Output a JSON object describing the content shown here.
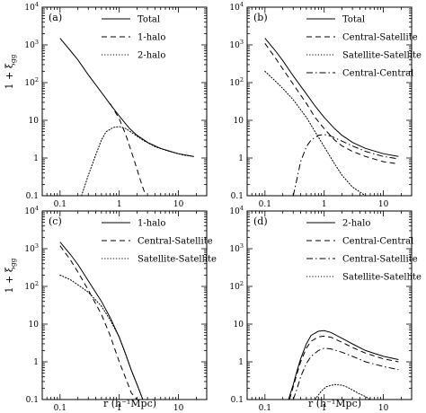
{
  "figure": {
    "xlabel": "r (h⁻¹Mpc)",
    "ylabel": "1 + ξ",
    "ylabel_sub": "gg",
    "xticks": [
      {
        "value": 0.1,
        "label": "0.1"
      },
      {
        "value": 1,
        "label": "1"
      },
      {
        "value": 10,
        "label": "10"
      }
    ],
    "yticks": [
      {
        "value": 0.1,
        "label": "0.1"
      },
      {
        "value": 1,
        "label": "1"
      },
      {
        "value": 10,
        "label": "10"
      },
      {
        "value": 100,
        "label": "10",
        "sup": "2"
      },
      {
        "value": 1000,
        "label": "10",
        "sup": "3"
      },
      {
        "value": 10000,
        "label": "10",
        "sup": "4"
      }
    ],
    "xlim": [
      0.05,
      30
    ],
    "ylim": [
      0.1,
      10000
    ],
    "xscale": "log",
    "yscale": "log"
  },
  "chart_data": [
    {
      "type": "line",
      "panel": "(a)",
      "legend_position": "top-right",
      "series": [
        {
          "name": "Total",
          "style": "solid",
          "x": [
            0.1,
            0.15,
            0.2,
            0.3,
            0.5,
            0.7,
            1,
            1.5,
            2,
            3,
            5,
            10,
            18
          ],
          "y": [
            1500,
            700,
            400,
            160,
            55,
            27,
            13,
            6,
            4,
            2.6,
            1.8,
            1.3,
            1.1
          ]
        },
        {
          "name": "1-halo",
          "style": "dashed",
          "x": [
            0.7,
            1,
            1.3,
            1.6,
            2,
            2.4,
            2.8
          ],
          "y": [
            28,
            11,
            4,
            1.5,
            0.5,
            0.2,
            0.1
          ]
        },
        {
          "name": "2-halo",
          "style": "dotted",
          "x": [
            0.23,
            0.3,
            0.4,
            0.5,
            0.6,
            0.8,
            1,
            1.3,
            1.7,
            2.5,
            4,
            7,
            12,
            18
          ],
          "y": [
            0.1,
            0.35,
            1.2,
            3,
            5,
            6.5,
            6.8,
            6,
            4.5,
            3,
            2,
            1.5,
            1.2,
            1.1
          ]
        }
      ]
    },
    {
      "type": "line",
      "panel": "(b)",
      "legend_position": "top-right",
      "series": [
        {
          "name": "Total",
          "style": "solid",
          "x": [
            0.1,
            0.15,
            0.2,
            0.3,
            0.5,
            0.7,
            1,
            1.5,
            2,
            3,
            5,
            10,
            18
          ],
          "y": [
            1500,
            700,
            380,
            150,
            50,
            24,
            12,
            6,
            4,
            2.6,
            1.8,
            1.3,
            1.1
          ]
        },
        {
          "name": "Central-Satellite",
          "style": "dashed",
          "x": [
            0.1,
            0.15,
            0.2,
            0.3,
            0.5,
            0.7,
            1,
            1.5,
            2,
            3,
            5,
            10,
            18
          ],
          "y": [
            1100,
            450,
            230,
            90,
            28,
            12,
            6,
            3,
            2.1,
            1.5,
            1.1,
            0.8,
            0.7
          ]
        },
        {
          "name": "Satellite-Satellite",
          "style": "dotted",
          "x": [
            0.1,
            0.15,
            0.2,
            0.3,
            0.5,
            0.7,
            1,
            1.5,
            2,
            3,
            5
          ],
          "y": [
            200,
            110,
            70,
            35,
            12,
            5,
            2,
            0.7,
            0.35,
            0.17,
            0.1
          ]
        },
        {
          "name": "Central-Central",
          "style": "dashdot",
          "x": [
            0.3,
            0.35,
            0.4,
            0.5,
            0.6,
            0.8,
            1,
            1.3,
            2,
            3,
            5,
            10,
            18
          ],
          "y": [
            0.1,
            0.3,
            0.8,
            2,
            3,
            4,
            4.2,
            3.8,
            2.8,
            2.1,
            1.5,
            1.1,
            0.95
          ]
        }
      ]
    },
    {
      "type": "line",
      "panel": "(c)",
      "legend_position": "top-right",
      "series": [
        {
          "name": "1-halo",
          "style": "solid",
          "x": [
            0.1,
            0.15,
            0.2,
            0.3,
            0.5,
            0.7,
            1,
            1.3,
            1.6,
            2,
            2.5
          ],
          "y": [
            1500,
            700,
            380,
            140,
            40,
            15,
            4.5,
            1.5,
            0.6,
            0.25,
            0.1
          ]
        },
        {
          "name": "Central-Satellite",
          "style": "dashed",
          "x": [
            0.1,
            0.15,
            0.2,
            0.3,
            0.5,
            0.7,
            1,
            1.3,
            1.6,
            2
          ],
          "y": [
            1200,
            500,
            240,
            80,
            18,
            5,
            1,
            0.35,
            0.15,
            0.1
          ]
        },
        {
          "name": "Satellite-Satellite",
          "style": "dotted",
          "x": [
            0.1,
            0.15,
            0.2,
            0.3,
            0.5,
            0.7,
            1,
            1.3,
            1.6,
            2,
            2.5
          ],
          "y": [
            200,
            150,
            110,
            70,
            30,
            13,
            4.5,
            1.5,
            0.6,
            0.25,
            0.1
          ]
        }
      ]
    },
    {
      "type": "line",
      "panel": "(d)",
      "legend_position": "top-right",
      "series": [
        {
          "name": "2-halo",
          "style": "solid",
          "x": [
            0.25,
            0.3,
            0.35,
            0.4,
            0.5,
            0.6,
            0.8,
            1,
            1.3,
            2,
            3,
            5,
            10,
            18
          ],
          "y": [
            0.1,
            0.25,
            0.6,
            1.2,
            3,
            5,
            6.5,
            6.7,
            6,
            4.2,
            3,
            2,
            1.4,
            1.15
          ]
        },
        {
          "name": "Central-Central",
          "style": "dashed",
          "x": [
            0.26,
            0.3,
            0.35,
            0.4,
            0.5,
            0.6,
            0.8,
            1,
            1.3,
            2,
            3,
            5,
            10,
            18
          ],
          "y": [
            0.1,
            0.22,
            0.5,
            1,
            2.3,
            3.5,
            4.6,
            4.8,
            4.5,
            3.3,
            2.4,
            1.7,
            1.2,
            1
          ]
        },
        {
          "name": "Central-Satellite",
          "style": "dashdot",
          "x": [
            0.3,
            0.35,
            0.4,
            0.5,
            0.6,
            0.8,
            1,
            1.3,
            2,
            3,
            5,
            10,
            18
          ],
          "y": [
            0.1,
            0.2,
            0.4,
            0.9,
            1.4,
            2,
            2.3,
            2.2,
            1.8,
            1.4,
            1,
            0.75,
            0.62
          ]
        },
        {
          "name": "Satellite-Satellite",
          "style": "dotted",
          "x": [
            0.7,
            0.9,
            1.1,
            1.5,
            2,
            2.5,
            3,
            4,
            5,
            6
          ],
          "y": [
            0.1,
            0.17,
            0.22,
            0.25,
            0.24,
            0.21,
            0.18,
            0.14,
            0.12,
            0.1
          ]
        }
      ]
    }
  ]
}
